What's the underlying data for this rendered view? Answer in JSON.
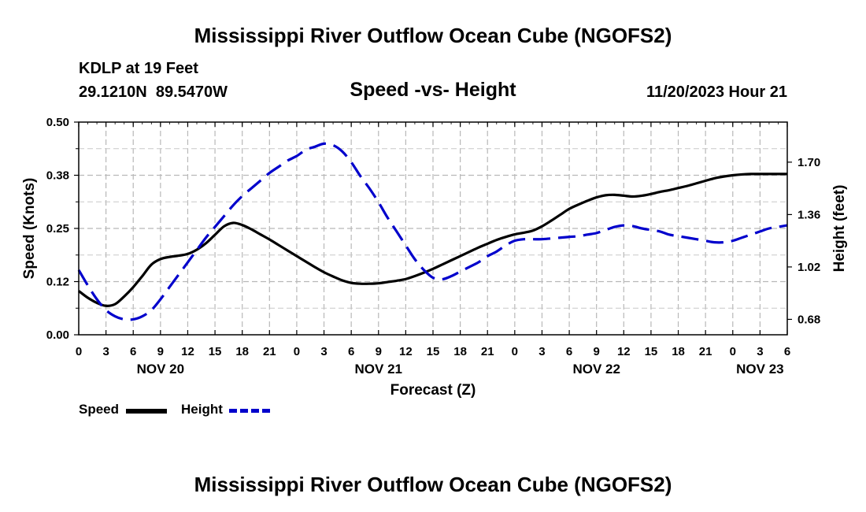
{
  "chart_data": {
    "type": "line",
    "title": "Mississippi River Outflow Ocean Cube (NGOFS2)",
    "bottom_title": "Mississippi River Outflow Ocean Cube (NGOFS2)",
    "subtitle": "Speed -vs- Height",
    "station": "KDLP at 19 Feet",
    "coords": "29.1210N  89.5470W",
    "timestamp": "11/20/2023 Hour 21",
    "xlabel": "Forecast (Z)",
    "ylabel_left": "Speed (Knots)",
    "ylabel_right": "Height (feet)",
    "xlim": [
      0,
      78
    ],
    "ylim_left": [
      0,
      0.5
    ],
    "ylim_right": [
      0.58,
      1.96
    ],
    "x_tick_labels": [
      "0",
      "3",
      "6",
      "9",
      "12",
      "15",
      "18",
      "21",
      "0",
      "3",
      "6",
      "9",
      "12",
      "15",
      "18",
      "21",
      "0",
      "3",
      "6",
      "9",
      "12",
      "15",
      "18",
      "21",
      "0",
      "3",
      "6"
    ],
    "left_ticks": [
      {
        "value": 0,
        "label": "0.00"
      },
      {
        "value": 0.125,
        "label": "0.12"
      },
      {
        "value": 0.25,
        "label": "0.25"
      },
      {
        "value": 0.375,
        "label": "0.38"
      },
      {
        "value": 0.5,
        "label": "0.50"
      }
    ],
    "right_ticks": [
      {
        "value": 0.68,
        "label": "0.68"
      },
      {
        "value": 1.02,
        "label": "1.02"
      },
      {
        "value": 1.36,
        "label": "1.36"
      },
      {
        "value": 1.7,
        "label": "1.70"
      }
    ],
    "date_labels": [
      {
        "x": 9,
        "label": "NOV 20"
      },
      {
        "x": 33,
        "label": "NOV 21"
      },
      {
        "x": 57,
        "label": "NOV 22"
      },
      {
        "x": 75,
        "label": "NOV 23"
      }
    ],
    "grid": true,
    "legend": "bottom-left",
    "series": [
      {
        "name": "Speed",
        "axis": "left",
        "color": "#000000",
        "style": "solid",
        "x": [
          0,
          1,
          2,
          3,
          4,
          5,
          6,
          7,
          8,
          9,
          10,
          11,
          12,
          13,
          14,
          15,
          16,
          17,
          18,
          19,
          20,
          21,
          22,
          23,
          24,
          25,
          26,
          27,
          28,
          29,
          30,
          31,
          32,
          33,
          34,
          35,
          36,
          37,
          38,
          39,
          40,
          41,
          42,
          43,
          44,
          45,
          46,
          47,
          48,
          49,
          50,
          51,
          52,
          53,
          54,
          55,
          56,
          57,
          58,
          59,
          60,
          61,
          62,
          63,
          64,
          65,
          66,
          67,
          68,
          69,
          70,
          71,
          72,
          73,
          74,
          75,
          76,
          77,
          78
        ],
        "values": [
          0.103,
          0.087,
          0.075,
          0.068,
          0.072,
          0.09,
          0.112,
          0.138,
          0.165,
          0.178,
          0.183,
          0.186,
          0.19,
          0.2,
          0.215,
          0.235,
          0.255,
          0.263,
          0.258,
          0.248,
          0.236,
          0.224,
          0.211,
          0.198,
          0.185,
          0.172,
          0.159,
          0.147,
          0.137,
          0.128,
          0.122,
          0.12,
          0.12,
          0.121,
          0.124,
          0.127,
          0.131,
          0.138,
          0.146,
          0.155,
          0.165,
          0.175,
          0.185,
          0.195,
          0.205,
          0.214,
          0.223,
          0.23,
          0.236,
          0.24,
          0.245,
          0.255,
          0.268,
          0.282,
          0.296,
          0.306,
          0.315,
          0.323,
          0.328,
          0.329,
          0.327,
          0.325,
          0.327,
          0.331,
          0.336,
          0.34,
          0.345,
          0.35,
          0.356,
          0.362,
          0.368,
          0.372,
          0.375,
          0.377,
          0.378,
          0.378,
          0.378,
          0.378,
          0.378
        ]
      },
      {
        "name": "Height",
        "axis": "right",
        "color": "#0000cc",
        "style": "dashed",
        "x": [
          0,
          1,
          2,
          3,
          4,
          5,
          6,
          7,
          8,
          9,
          10,
          11,
          12,
          13,
          14,
          15,
          16,
          17,
          18,
          19,
          20,
          21,
          22,
          23,
          24,
          25,
          26,
          27,
          28,
          29,
          30,
          31,
          32,
          33,
          34,
          35,
          36,
          37,
          38,
          39,
          40,
          41,
          42,
          43,
          44,
          45,
          46,
          47,
          48,
          49,
          50,
          51,
          52,
          53,
          54,
          55,
          56,
          57,
          58,
          59,
          60,
          61,
          62,
          63,
          64,
          65,
          66,
          67,
          68,
          69,
          70,
          71,
          72,
          73,
          74,
          75,
          76,
          77,
          78
        ],
        "values": [
          1.0,
          0.9,
          0.81,
          0.74,
          0.7,
          0.68,
          0.68,
          0.7,
          0.74,
          0.81,
          0.89,
          0.97,
          1.05,
          1.13,
          1.21,
          1.28,
          1.35,
          1.42,
          1.48,
          1.53,
          1.58,
          1.63,
          1.67,
          1.71,
          1.74,
          1.78,
          1.8,
          1.82,
          1.81,
          1.77,
          1.7,
          1.61,
          1.53,
          1.44,
          1.34,
          1.25,
          1.16,
          1.07,
          1.0,
          0.95,
          0.94,
          0.96,
          0.99,
          1.02,
          1.05,
          1.09,
          1.12,
          1.16,
          1.19,
          1.2,
          1.2,
          1.2,
          1.205,
          1.21,
          1.215,
          1.22,
          1.23,
          1.24,
          1.26,
          1.28,
          1.29,
          1.285,
          1.27,
          1.26,
          1.25,
          1.23,
          1.22,
          1.21,
          1.2,
          1.19,
          1.18,
          1.18,
          1.19,
          1.21,
          1.23,
          1.25,
          1.27,
          1.28,
          1.29
        ]
      }
    ]
  }
}
